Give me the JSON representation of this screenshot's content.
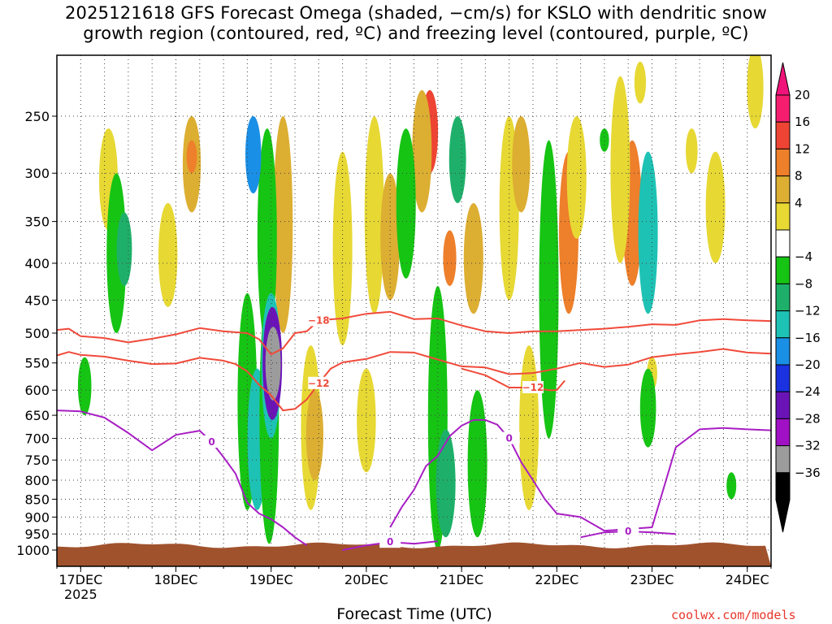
{
  "title": {
    "line1": "2025121618 GFS Forecast Omega (shaded, −cm/s) for KSLO with dendritic snow",
    "line2": "growth region (contoured, red, ºC) and freezing level (contoured, purple, ºC)"
  },
  "xlabel": "Forecast Time (UTC)",
  "credit": "coolwx.com/models",
  "chart_data": {
    "type": "heatmap",
    "title": "2025121618 GFS Forecast Omega (shaded, −cm/s) for KSLO with dendritic snow growth region (contoured, red, ºC) and freezing level (contoured, purple, ºC)",
    "xlabel": "Forecast Time (UTC)",
    "ylabel": "",
    "x_ticks": [
      {
        "label": "17DEC",
        "sublabel": "2025",
        "value": 0
      },
      {
        "label": "18DEC",
        "value": 24
      },
      {
        "label": "19DEC",
        "value": 48
      },
      {
        "label": "20DEC",
        "value": 72
      },
      {
        "label": "21DEC",
        "value": 96
      },
      {
        "label": "22DEC",
        "value": 120
      },
      {
        "label": "23DEC",
        "value": 144
      },
      {
        "label": "24DEC",
        "value": 168
      }
    ],
    "x_range_hours": [
      -6,
      174
    ],
    "y_ticks": [
      250,
      300,
      350,
      400,
      450,
      500,
      550,
      600,
      650,
      700,
      750,
      800,
      850,
      900,
      950,
      1000
    ],
    "y_range_hpa": [
      200,
      1020
    ],
    "y_scale": "log-pressure, inverted",
    "grid": "dotted",
    "colorbar": {
      "labels": [
        "20",
        "16",
        "12",
        "8",
        "4",
        "−4",
        "−8",
        "−12",
        "−16",
        "−20",
        "−24",
        "−28",
        "−32",
        "−36"
      ],
      "colors": [
        "#f51e6e",
        "#ee4433",
        "#ee7f2b",
        "#dcae32",
        "#e7d834",
        "#ffffff",
        "#16c414",
        "#1eb06a",
        "#1ec2b4",
        "#1a8fe6",
        "#1a32e0",
        "#6a14b8",
        "#a010c4",
        "#9c9c9c",
        "#000000"
      ],
      "top_arrow_color": "#f0147a",
      "bottom_arrow_color": "#000000"
    },
    "dgz_contours": [
      {
        "level": -18,
        "label": "−18",
        "color": "#f04a3a",
        "points": [
          [
            -6,
            495
          ],
          [
            -3,
            493
          ],
          [
            0,
            505
          ],
          [
            6,
            508
          ],
          [
            12,
            515
          ],
          [
            18,
            509
          ],
          [
            24,
            502
          ],
          [
            30,
            492
          ],
          [
            36,
            497
          ],
          [
            42,
            500
          ],
          [
            45,
            510
          ],
          [
            48,
            535
          ],
          [
            51,
            525
          ],
          [
            54,
            500
          ],
          [
            57,
            497
          ],
          [
            60,
            480
          ],
          [
            66,
            477
          ],
          [
            72,
            470
          ],
          [
            78,
            467
          ],
          [
            84,
            478
          ],
          [
            90,
            477
          ],
          [
            96,
            488
          ],
          [
            102,
            497
          ],
          [
            108,
            500
          ],
          [
            114,
            497
          ],
          [
            120,
            497
          ],
          [
            126,
            495
          ],
          [
            132,
            493
          ],
          [
            138,
            490
          ],
          [
            144,
            486
          ],
          [
            150,
            487
          ],
          [
            156,
            480
          ],
          [
            162,
            478
          ],
          [
            168,
            480
          ],
          [
            174,
            481
          ]
        ]
      },
      {
        "level": -12,
        "label": "−12",
        "color": "#f04a3a",
        "points": [
          [
            -6,
            537
          ],
          [
            -3,
            531
          ],
          [
            0,
            536
          ],
          [
            6,
            539
          ],
          [
            12,
            546
          ],
          [
            18,
            552
          ],
          [
            24,
            551
          ],
          [
            30,
            541
          ],
          [
            36,
            546
          ],
          [
            39,
            552
          ],
          [
            42,
            565
          ],
          [
            45,
            590
          ],
          [
            48,
            610
          ],
          [
            51,
            640
          ],
          [
            54,
            637
          ],
          [
            57,
            618
          ],
          [
            60,
            587
          ],
          [
            63,
            560
          ],
          [
            66,
            549
          ],
          [
            72,
            543
          ],
          [
            78,
            531
          ],
          [
            84,
            532
          ],
          [
            90,
            544
          ],
          [
            96,
            556
          ],
          [
            102,
            558
          ],
          [
            108,
            570
          ],
          [
            114,
            568
          ],
          [
            120,
            560
          ],
          [
            126,
            550
          ],
          [
            132,
            557
          ],
          [
            138,
            553
          ],
          [
            144,
            540
          ],
          [
            150,
            535
          ],
          [
            156,
            531
          ],
          [
            162,
            526
          ],
          [
            168,
            532
          ],
          [
            174,
            534
          ]
        ]
      },
      {
        "level": -12,
        "label": "−12",
        "color": "#f04a3a",
        "points": [
          [
            96,
            560
          ],
          [
            102,
            572
          ],
          [
            108,
            595
          ],
          [
            114,
            595
          ],
          [
            118,
            600
          ],
          [
            120,
            600
          ],
          [
            122,
            582
          ]
        ]
      }
    ],
    "freezing_level_contours": [
      {
        "level": 0,
        "label": "0",
        "color": "#a81ec4",
        "points": [
          [
            -6,
            640
          ],
          [
            0,
            642
          ],
          [
            6,
            655
          ],
          [
            12,
            688
          ],
          [
            18,
            727
          ],
          [
            24,
            692
          ],
          [
            30,
            683
          ],
          [
            33,
            708
          ],
          [
            36,
            743
          ],
          [
            39,
            783
          ],
          [
            42,
            860
          ],
          [
            45,
            890
          ],
          [
            48,
            906
          ],
          [
            51,
            930
          ],
          [
            54,
            960
          ],
          [
            57,
            985
          ]
        ]
      },
      {
        "level": 0,
        "label": "0",
        "color": "#a81ec4",
        "points": [
          [
            66,
            1000
          ],
          [
            72,
            985
          ],
          [
            78,
            975
          ],
          [
            84,
            980
          ],
          [
            90,
            972
          ]
        ]
      },
      {
        "level": 0,
        "label": "0",
        "color": "#a81ec4",
        "points": [
          [
            78,
            930
          ],
          [
            81,
            870
          ],
          [
            84,
            825
          ],
          [
            87,
            765
          ],
          [
            90,
            740
          ],
          [
            93,
            695
          ],
          [
            96,
            672
          ],
          [
            99,
            660
          ],
          [
            102,
            660
          ],
          [
            105,
            670
          ],
          [
            108,
            700
          ],
          [
            111,
            755
          ],
          [
            114,
            800
          ],
          [
            117,
            850
          ],
          [
            120,
            890
          ],
          [
            126,
            900
          ],
          [
            132,
            940
          ],
          [
            138,
            935
          ],
          [
            144,
            930
          ],
          [
            150,
            720
          ],
          [
            156,
            680
          ],
          [
            162,
            677
          ],
          [
            168,
            680
          ],
          [
            174,
            682
          ]
        ]
      },
      {
        "level": 0,
        "label": "0",
        "color": "#a81ec4",
        "points": [
          [
            126,
            960
          ],
          [
            132,
            945
          ],
          [
            138,
            942
          ],
          [
            144,
            945
          ],
          [
            150,
            950
          ]
        ]
      }
    ],
    "omega_blobs": [
      {
        "band": "−8",
        "t": 1,
        "p1": 540,
        "p2": 650
      },
      {
        "band": "−8",
        "t": 9,
        "p1": 300,
        "p2": 500
      },
      {
        "band": "−12",
        "t": 11,
        "p1": 340,
        "p2": 430
      },
      {
        "band": "−8",
        "t": 42,
        "p1": 440,
        "p2": 880
      },
      {
        "band": "−16",
        "t": 44.5,
        "p1": 560,
        "p2": 880
      },
      {
        "band": "−8",
        "t": 47,
        "p1": 260,
        "p2": 520
      },
      {
        "band": "−20",
        "t": 43.5,
        "p1": 250,
        "p2": 320
      },
      {
        "band": "−8",
        "t": 47.5,
        "p1": 430,
        "p2": 980
      },
      {
        "band": "−16",
        "t": 48,
        "p1": 440,
        "p2": 700
      },
      {
        "band": "−28",
        "t": 48.3,
        "p1": 460,
        "p2": 660
      },
      {
        "band": "−36",
        "t": 48.5,
        "p1": 490,
        "p2": 620
      },
      {
        "band": "−8",
        "t": 82,
        "p1": 260,
        "p2": 420
      },
      {
        "band": "−8",
        "t": 90,
        "p1": 430,
        "p2": 1000
      },
      {
        "band": "−12",
        "t": 92,
        "p1": 680,
        "p2": 960
      },
      {
        "band": "−12",
        "t": 95,
        "p1": 250,
        "p2": 330
      },
      {
        "band": "−8",
        "t": 100,
        "p1": 600,
        "p2": 960
      },
      {
        "band": "−8",
        "t": 118,
        "p1": 270,
        "p2": 700
      },
      {
        "band": "−8",
        "t": 132,
        "p1": 260,
        "p2": 280
      },
      {
        "band": "−16",
        "t": 143,
        "p1": 280,
        "p2": 470
      },
      {
        "band": "−8",
        "t": 143,
        "p1": 560,
        "p2": 720
      },
      {
        "band": "−8",
        "t": 164,
        "p1": 780,
        "p2": 850
      }
    ],
    "positive_blobs": [
      {
        "band": "4",
        "t": 7,
        "p1": 260,
        "p2": 360
      },
      {
        "band": "8",
        "t": 28,
        "p1": 250,
        "p2": 340
      },
      {
        "band": "12",
        "t": 28,
        "p1": 270,
        "p2": 300
      },
      {
        "band": "4",
        "t": 22,
        "p1": 330,
        "p2": 460
      },
      {
        "band": "8",
        "t": 51,
        "p1": 250,
        "p2": 500
      },
      {
        "band": "4",
        "t": 58,
        "p1": 520,
        "p2": 880
      },
      {
        "band": "8",
        "t": 59,
        "p1": 600,
        "p2": 800
      },
      {
        "band": "4",
        "t": 66,
        "p1": 280,
        "p2": 520
      },
      {
        "band": "4",
        "t": 72,
        "p1": 560,
        "p2": 780
      },
      {
        "band": "4",
        "t": 74,
        "p1": 250,
        "p2": 470
      },
      {
        "band": "8",
        "t": 78,
        "p1": 300,
        "p2": 450
      },
      {
        "band": "16",
        "t": 88,
        "p1": 230,
        "p2": 300
      },
      {
        "band": "8",
        "t": 86,
        "p1": 230,
        "p2": 340
      },
      {
        "band": "12",
        "t": 93,
        "p1": 360,
        "p2": 430
      },
      {
        "band": "8",
        "t": 99,
        "p1": 330,
        "p2": 470
      },
      {
        "band": "4",
        "t": 108,
        "p1": 250,
        "p2": 450
      },
      {
        "band": "8",
        "t": 111,
        "p1": 250,
        "p2": 340
      },
      {
        "band": "4",
        "t": 113,
        "p1": 520,
        "p2": 880
      },
      {
        "band": "20",
        "t": 123,
        "p1": 330,
        "p2": 430
      },
      {
        "band": "12",
        "t": 123,
        "p1": 280,
        "p2": 470
      },
      {
        "band": "4",
        "t": 125,
        "p1": 250,
        "p2": 370
      },
      {
        "band": "20",
        "t": 139,
        "p1": 290,
        "p2": 340
      },
      {
        "band": "12",
        "t": 139,
        "p1": 270,
        "p2": 430
      },
      {
        "band": "4",
        "t": 136,
        "p1": 220,
        "p2": 400
      },
      {
        "band": "4",
        "t": 141,
        "p1": 210,
        "p2": 240
      },
      {
        "band": "4",
        "t": 144,
        "p1": 540,
        "p2": 600
      },
      {
        "band": "4",
        "t": 154,
        "p1": 260,
        "p2": 300
      },
      {
        "band": "4",
        "t": 160,
        "p1": 280,
        "p2": 400
      },
      {
        "band": "4",
        "t": 170,
        "p1": 200,
        "p2": 260
      }
    ],
    "surface": {
      "color": "#a0522d",
      "p_top": 985,
      "p_bottom": 1020
    }
  }
}
